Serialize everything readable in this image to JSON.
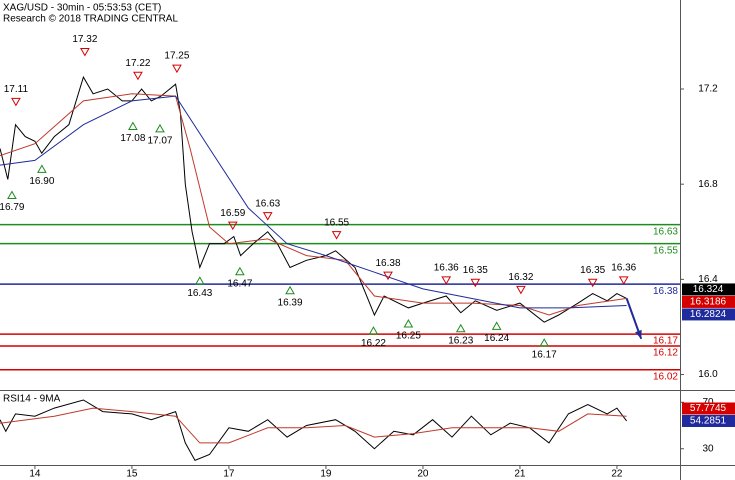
{
  "chart_data": [
    {
      "type": "line",
      "title": "XAG/USD - 30min - 05:53:53 (CET)",
      "subtitle": "Research © 2018 TRADING CENTRAL",
      "xlim": [
        -0.36,
        6.65
      ],
      "xticks": [
        {
          "value": 0,
          "label": "14"
        },
        {
          "value": 1,
          "label": "15"
        },
        {
          "value": 2,
          "label": "17"
        },
        {
          "value": 3,
          "label": "19"
        },
        {
          "value": 4,
          "label": "20"
        },
        {
          "value": 5,
          "label": "21"
        },
        {
          "value": 6,
          "label": "22"
        }
      ],
      "ylim": [
        15.935,
        17.574
      ],
      "yticks": [
        17.2,
        16.8,
        16.4,
        {
          "value": 16,
          "label": "16.0"
        }
      ],
      "series": [
        {
          "color": "#000000",
          "x": [
            -0.36,
            -0.28,
            -0.2,
            -0.1,
            0.0,
            0.07,
            0.2,
            0.35,
            0.5,
            0.6,
            0.75,
            0.9,
            1.0,
            1.1,
            1.2,
            1.3,
            1.45,
            1.5,
            1.55,
            1.62,
            1.7,
            1.8,
            1.95,
            2.05,
            2.12,
            2.25,
            2.4,
            2.5,
            2.63,
            2.8,
            3.0,
            3.1,
            3.3,
            3.45,
            3.5,
            3.6,
            3.85,
            4.0,
            4.24,
            4.39,
            4.54,
            4.76,
            5.0,
            5.25,
            5.4,
            5.6,
            5.75,
            5.9,
            6.0,
            6.1
          ],
          "values": [
            16.95,
            16.82,
            17.05,
            17.0,
            16.98,
            16.93,
            17.0,
            17.05,
            17.25,
            17.18,
            17.2,
            17.15,
            17.15,
            17.2,
            17.15,
            17.17,
            17.22,
            17.1,
            16.8,
            16.6,
            16.45,
            16.55,
            16.55,
            16.58,
            16.5,
            16.55,
            16.6,
            16.55,
            16.45,
            16.48,
            16.5,
            16.52,
            16.45,
            16.3,
            16.25,
            16.33,
            16.28,
            16.3,
            16.33,
            16.26,
            16.31,
            16.27,
            16.3,
            16.22,
            16.25,
            16.3,
            16.34,
            16.31,
            16.34,
            16.32
          ]
        },
        {
          "color": "#c0392b",
          "x": [
            -0.36,
            0.0,
            0.5,
            1.0,
            1.45,
            1.6,
            1.8,
            2.0,
            2.4,
            2.8,
            3.2,
            3.5,
            4.0,
            4.5,
            5.0,
            5.3,
            5.6,
            6.1
          ],
          "values": [
            16.92,
            16.97,
            17.15,
            17.18,
            17.17,
            16.95,
            16.62,
            16.55,
            16.57,
            16.5,
            16.48,
            16.33,
            16.3,
            16.3,
            16.29,
            16.25,
            16.29,
            16.32
          ]
        },
        {
          "color": "#1f2a9c",
          "x": [
            -0.36,
            0.0,
            0.5,
            1.0,
            1.45,
            1.8,
            2.2,
            2.6,
            3.0,
            3.5,
            4.0,
            4.5,
            5.0,
            5.5,
            6.1
          ],
          "values": [
            16.88,
            16.9,
            17.05,
            17.15,
            17.17,
            16.95,
            16.7,
            16.55,
            16.5,
            16.43,
            16.36,
            16.32,
            16.28,
            16.28,
            16.29
          ]
        }
      ],
      "forecast": {
        "color": "#1f2a9c",
        "x": [
          6.1,
          6.25
        ],
        "values": [
          16.32,
          16.15
        ]
      },
      "levels": [
        {
          "value": 16.63,
          "color": "#1e8c1e"
        },
        {
          "value": 16.55,
          "color": "#1e8c1e"
        },
        {
          "value": 16.38,
          "color": "#1f2a9c"
        },
        {
          "value": 16.17,
          "color": "#d40000"
        },
        {
          "value": 16.12,
          "color": "#d40000"
        },
        {
          "value": 16.02,
          "color": "#d40000"
        }
      ],
      "last_values": [
        {
          "value": 16.324,
          "color": "#000000"
        },
        {
          "value": 16.3186,
          "color": "#d40000"
        },
        {
          "value": 16.2824,
          "color": "#1f2a9c"
        }
      ],
      "annotations": [
        {
          "x": -0.196,
          "value": 17.11,
          "direction": "down"
        },
        {
          "x": -0.237,
          "value": 16.79,
          "direction": "up"
        },
        {
          "x": 0.072,
          "value": 16.9,
          "label": "16.90",
          "direction": "up"
        },
        {
          "x": 0.515,
          "value": 17.32,
          "direction": "down"
        },
        {
          "x": 1.062,
          "value": 17.22,
          "direction": "down"
        },
        {
          "x": 1.01,
          "value": 17.08,
          "direction": "up"
        },
        {
          "x": 1.289,
          "value": 17.07,
          "direction": "up"
        },
        {
          "x": 1.464,
          "value": 17.25,
          "direction": "down"
        },
        {
          "x": 1.7,
          "value": 16.43,
          "direction": "up"
        },
        {
          "x": 2.04,
          "value": 16.59,
          "direction": "down"
        },
        {
          "x": 2.113,
          "value": 16.47,
          "direction": "up"
        },
        {
          "x": 2.4,
          "value": 16.63,
          "direction": "down"
        },
        {
          "x": 2.63,
          "value": 16.39,
          "direction": "up"
        },
        {
          "x": 3.11,
          "value": 16.55,
          "direction": "down"
        },
        {
          "x": 3.64,
          "value": 16.38,
          "direction": "down"
        },
        {
          "x": 3.49,
          "value": 16.22,
          "direction": "up"
        },
        {
          "x": 3.85,
          "value": 16.25,
          "direction": "up"
        },
        {
          "x": 4.24,
          "value": 16.36,
          "direction": "down"
        },
        {
          "x": 4.39,
          "value": 16.23,
          "direction": "up"
        },
        {
          "x": 4.54,
          "value": 16.35,
          "direction": "down"
        },
        {
          "x": 4.76,
          "value": 16.24,
          "direction": "up"
        },
        {
          "x": 5.01,
          "value": 16.32,
          "direction": "down"
        },
        {
          "x": 5.25,
          "value": 16.17,
          "direction": "up"
        },
        {
          "x": 5.75,
          "value": 16.35,
          "direction": "down"
        },
        {
          "x": 6.07,
          "value": 16.36,
          "direction": "down"
        }
      ]
    },
    {
      "type": "line",
      "title": "RSI14 - 9MA",
      "xlim": [
        -0.36,
        6.65
      ],
      "ylim": [
        16,
        78
      ],
      "yticks": [
        70,
        30
      ],
      "series": [
        {
          "color": "#000000",
          "x": [
            -0.36,
            -0.3,
            -0.2,
            0.0,
            0.2,
            0.5,
            0.7,
            1.0,
            1.2,
            1.45,
            1.55,
            1.65,
            1.8,
            2.0,
            2.2,
            2.4,
            2.6,
            2.8,
            3.1,
            3.3,
            3.5,
            3.7,
            3.9,
            4.1,
            4.3,
            4.5,
            4.7,
            4.9,
            5.1,
            5.3,
            5.5,
            5.7,
            5.9,
            6.0,
            6.1
          ],
          "values": [
            55,
            45,
            60,
            58,
            65,
            72,
            62,
            60,
            55,
            62,
            35,
            20,
            25,
            48,
            45,
            55,
            40,
            50,
            55,
            45,
            30,
            45,
            42,
            55,
            40,
            58,
            42,
            52,
            48,
            35,
            60,
            68,
            60,
            65,
            54
          ]
        },
        {
          "color": "#c0392b",
          "x": [
            -0.36,
            0.2,
            0.6,
            1.0,
            1.45,
            1.7,
            2.0,
            2.4,
            2.8,
            3.2,
            3.5,
            3.9,
            4.3,
            4.7,
            5.1,
            5.4,
            5.7,
            6.1
          ],
          "values": [
            52,
            58,
            65,
            62,
            58,
            35,
            35,
            48,
            48,
            50,
            40,
            43,
            48,
            48,
            48,
            45,
            60,
            58
          ]
        }
      ],
      "last_values": [
        {
          "value": 57.7745,
          "color": "#d40000"
        },
        {
          "value": 54.2851,
          "color": "#1f2a9c"
        }
      ]
    }
  ]
}
